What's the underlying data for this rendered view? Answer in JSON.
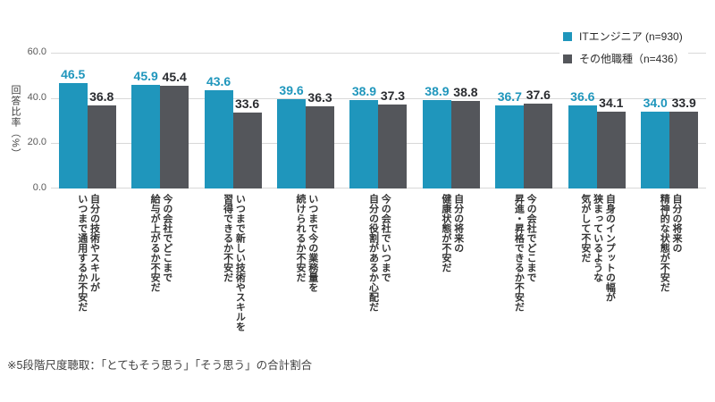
{
  "legend": {
    "items": [
      {
        "label": "ITエンジニア (n=930)",
        "color": "#1F96BC"
      },
      {
        "label": "その他職種（n=436）",
        "color": "#54565B"
      }
    ]
  },
  "y_axis": {
    "title": "回答比率（%）",
    "ticks": [
      "60.0",
      "40.0",
      "20.0",
      "0.0"
    ]
  },
  "footnote": "※5段階尺度聴取：「とてもそう思う」「そう思う」の合計割合",
  "colors": {
    "it_engineer_bar": "#1F96BC",
    "other_bar": "#54565B",
    "it_value_label": "#1F96BC",
    "other_value_label": "#2A2C30",
    "gridline": "#D8D8D8"
  },
  "chart_data": {
    "type": "bar",
    "title": "",
    "xlabel": "",
    "ylabel": "回答比率（%）",
    "ylim": [
      0,
      60
    ],
    "y_ticks": [
      0.0,
      20.0,
      40.0,
      60.0
    ],
    "grid": true,
    "legend_position": "top-right",
    "categories": [
      "自分の技術やスキルが\nいつまで通用するか不安だ",
      "今の会社でどこまで\n給与が上がるか不安だ",
      "いつまで新しい技術やスキルを\n習得できるか不安だ",
      "いつまで今の業務量を\n続けられるか不安だ",
      "今の会社でいつまで\n自分の役割があるか心配だ",
      "自分の将来の\n健康状態が不安だ",
      "今の会社でどこまで\n昇進・昇格できるか不安だ",
      "自身のインプットの幅が\n狭まっているような\n気がして不安だ",
      "自分の将来の\n精神的な状態が不安だ"
    ],
    "series": [
      {
        "name": "ITエンジニア (n=930)",
        "color": "#1F96BC",
        "label_color": "#1F96BC",
        "values": [
          46.5,
          45.9,
          43.6,
          39.6,
          38.9,
          38.9,
          36.7,
          36.6,
          34.0
        ]
      },
      {
        "name": "その他職種（n=436）",
        "color": "#54565B",
        "label_color": "#2A2C30",
        "values": [
          36.8,
          45.4,
          33.6,
          36.3,
          37.3,
          38.8,
          37.6,
          34.1,
          33.9
        ]
      }
    ]
  }
}
